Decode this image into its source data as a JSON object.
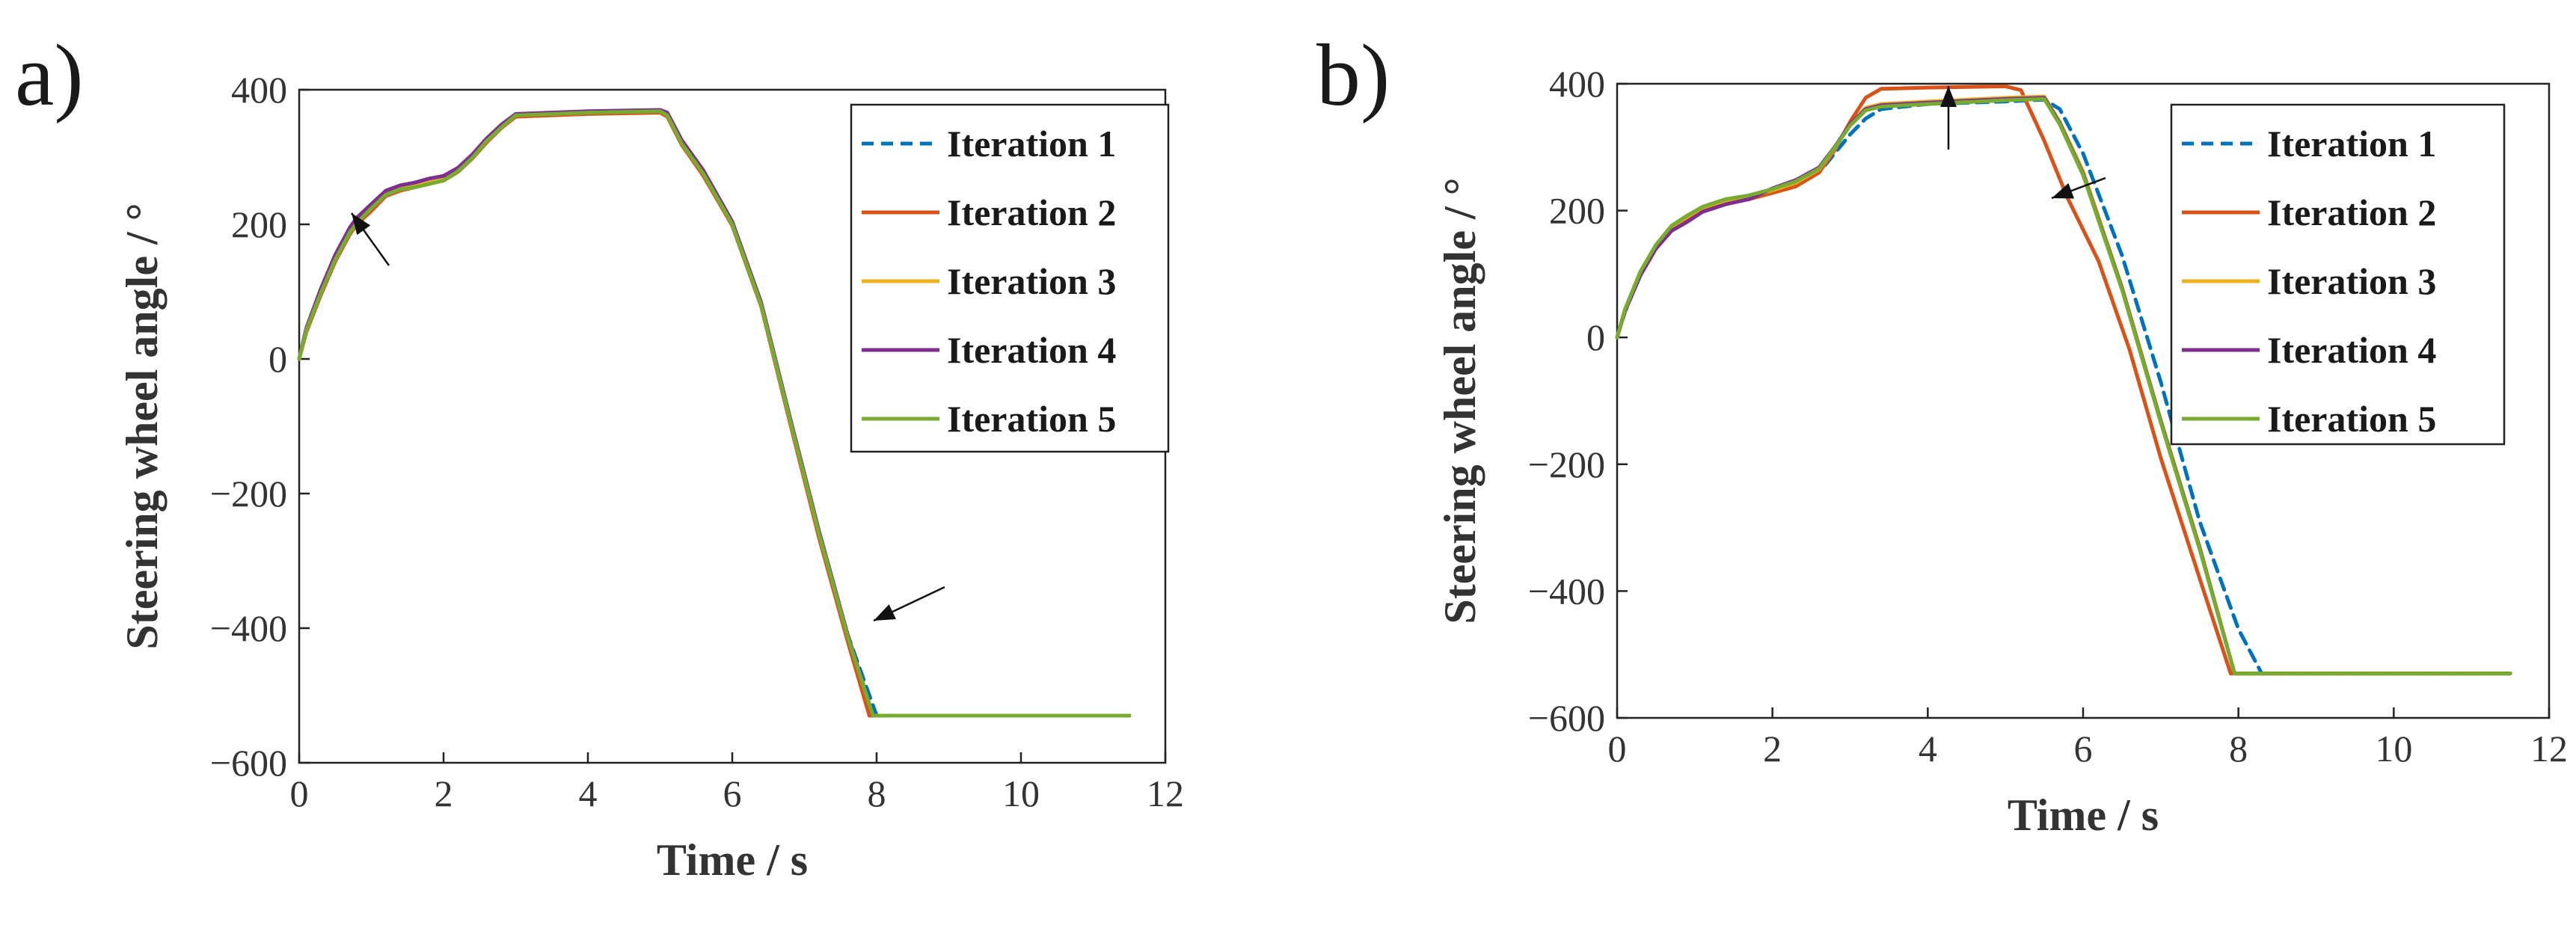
{
  "figure": {
    "panel_labels": [
      "a)",
      "b)"
    ]
  },
  "chart_data": [
    {
      "type": "line",
      "panel_label": "a)",
      "title": "",
      "xlabel": "Time / s",
      "ylabel": "Steering wheel angle / °",
      "xlim": [
        0,
        12
      ],
      "ylim": [
        -600,
        400
      ],
      "xticks": [
        "0",
        "2",
        "4",
        "6",
        "8",
        "10",
        "12"
      ],
      "yticks": [
        "400",
        "200",
        "0",
        "−200",
        "−400",
        "−600"
      ],
      "grid": false,
      "legend_position": "top-right",
      "annotations": [
        "arrow at t≈0.8 s, 210°",
        "arrow at t≈7.8 s, −390°"
      ],
      "series": [
        {
          "name": "Iteration 1",
          "color": "#0072BD",
          "dash": "dashed",
          "x": [
            0,
            0.1,
            0.3,
            0.5,
            0.7,
            0.8,
            1.0,
            1.2,
            1.4,
            1.6,
            1.8,
            2.0,
            2.2,
            2.4,
            2.6,
            2.8,
            3.0,
            4.0,
            5.0,
            5.1,
            5.3,
            5.6,
            6.0,
            6.4,
            6.8,
            7.2,
            7.6,
            8.0,
            9.0,
            10.0,
            11.5
          ],
          "y": [
            0,
            45,
            100,
            150,
            190,
            205,
            225,
            245,
            255,
            258,
            262,
            268,
            280,
            300,
            325,
            345,
            362,
            366,
            368,
            362,
            320,
            275,
            200,
            80,
            -90,
            -260,
            -410,
            -530,
            -530,
            -530,
            -530
          ]
        },
        {
          "name": "Iteration 2",
          "color": "#D95319",
          "dash": "solid",
          "x": [
            0,
            0.1,
            0.3,
            0.5,
            0.7,
            0.8,
            1.0,
            1.2,
            1.4,
            1.6,
            1.8,
            2.0,
            2.2,
            2.4,
            2.6,
            2.8,
            3.0,
            4.0,
            5.0,
            5.1,
            5.3,
            5.6,
            6.0,
            6.4,
            6.8,
            7.2,
            7.6,
            7.9,
            8.0,
            9.0,
            10.0,
            11.5
          ],
          "y": [
            0,
            40,
            95,
            145,
            185,
            200,
            220,
            242,
            250,
            255,
            260,
            265,
            278,
            298,
            322,
            343,
            360,
            364,
            366,
            360,
            318,
            272,
            198,
            78,
            -95,
            -265,
            -420,
            -530,
            -530,
            -530,
            -530,
            -530
          ]
        },
        {
          "name": "Iteration 3",
          "color": "#EDB120",
          "dash": "solid",
          "x": [
            0,
            0.1,
            0.3,
            0.5,
            0.7,
            0.8,
            1.0,
            1.2,
            1.4,
            1.6,
            1.8,
            2.0,
            2.2,
            2.4,
            2.6,
            2.8,
            3.0,
            4.0,
            5.0,
            5.1,
            5.3,
            5.6,
            6.0,
            6.4,
            6.8,
            7.2,
            7.6,
            7.95,
            9.0,
            10.0,
            11.5
          ],
          "y": [
            0,
            44,
            100,
            150,
            190,
            205,
            226,
            246,
            254,
            257,
            262,
            268,
            281,
            301,
            326,
            346,
            363,
            367,
            369,
            363,
            321,
            276,
            201,
            81,
            -90,
            -258,
            -412,
            -530,
            -530,
            -530,
            -530
          ]
        },
        {
          "name": "Iteration 4",
          "color": "#7E2F8E",
          "dash": "solid",
          "x": [
            0,
            0.1,
            0.3,
            0.5,
            0.7,
            0.8,
            1.0,
            1.2,
            1.4,
            1.6,
            1.8,
            2.0,
            2.2,
            2.4,
            2.6,
            2.8,
            3.0,
            4.0,
            5.0,
            5.1,
            5.3,
            5.6,
            6.0,
            6.4,
            6.8,
            7.2,
            7.6,
            7.95,
            9.0,
            10.0,
            11.5
          ],
          "y": [
            0,
            46,
            104,
            155,
            195,
            210,
            230,
            250,
            258,
            262,
            268,
            272,
            284,
            304,
            328,
            348,
            364,
            368,
            370,
            366,
            325,
            280,
            204,
            84,
            -87,
            -255,
            -410,
            -530,
            -530,
            -530,
            -530
          ]
        },
        {
          "name": "Iteration 5",
          "color": "#77AC30",
          "dash": "solid",
          "x": [
            0,
            0.1,
            0.3,
            0.5,
            0.7,
            0.8,
            1.0,
            1.2,
            1.4,
            1.6,
            1.8,
            2.0,
            2.2,
            2.4,
            2.6,
            2.8,
            3.0,
            4.0,
            5.0,
            5.1,
            5.3,
            5.6,
            6.0,
            6.4,
            6.8,
            7.2,
            7.6,
            7.95,
            9.0,
            10.0,
            11.5
          ],
          "y": [
            0,
            43,
            98,
            148,
            188,
            202,
            224,
            244,
            252,
            255,
            260,
            265,
            279,
            299,
            324,
            344,
            362,
            366,
            368,
            362,
            320,
            275,
            200,
            80,
            -91,
            -259,
            -413,
            -530,
            -530,
            -530,
            -530
          ]
        }
      ]
    },
    {
      "type": "line",
      "panel_label": "b)",
      "title": "",
      "xlabel": "Time / s",
      "ylabel": "Steering wheel angle / °",
      "xlim": [
        0,
        12
      ],
      "ylim": [
        -600,
        400
      ],
      "xticks": [
        "0",
        "2",
        "4",
        "6",
        "8",
        "10",
        "12"
      ],
      "yticks": [
        "400",
        "200",
        "0",
        "−200",
        "−400",
        "−600"
      ],
      "grid": false,
      "legend_position": "top-right",
      "annotations": [
        "arrow at t≈4.4 s, 395°",
        "arrow at t≈6.0 s, 230°"
      ],
      "series": [
        {
          "name": "Iteration 1",
          "color": "#0072BD",
          "dash": "dashed",
          "x": [
            0,
            0.1,
            0.3,
            0.5,
            0.7,
            0.9,
            1.1,
            1.4,
            1.7,
            2.0,
            2.3,
            2.6,
            2.8,
            3.0,
            3.2,
            3.4,
            4.0,
            5.0,
            5.5,
            5.7,
            6.0,
            6.5,
            7.0,
            7.5,
            8.0,
            8.3,
            9.0,
            10.0,
            11.5
          ],
          "y": [
            0,
            40,
            100,
            140,
            170,
            185,
            200,
            215,
            220,
            230,
            240,
            260,
            290,
            320,
            345,
            360,
            368,
            372,
            375,
            360,
            290,
            130,
            -70,
            -290,
            -460,
            -530,
            -530,
            -530,
            -530
          ]
        },
        {
          "name": "Iteration 2",
          "color": "#D95319",
          "dash": "solid",
          "x": [
            0,
            0.1,
            0.3,
            0.5,
            0.7,
            0.9,
            1.1,
            1.4,
            1.7,
            2.0,
            2.3,
            2.6,
            2.8,
            3.0,
            3.2,
            3.4,
            4.0,
            5.0,
            5.2,
            5.5,
            5.8,
            6.2,
            6.6,
            7.0,
            7.5,
            7.9,
            8.0,
            9.0,
            10.0,
            11.5
          ],
          "y": [
            0,
            42,
            102,
            142,
            172,
            188,
            202,
            212,
            218,
            228,
            238,
            260,
            295,
            340,
            378,
            392,
            394,
            396,
            390,
            310,
            220,
            120,
            -20,
            -190,
            -380,
            -530,
            -530,
            -530,
            -530,
            -530
          ]
        },
        {
          "name": "Iteration 3",
          "color": "#EDB120",
          "dash": "solid",
          "x": [
            0,
            0.1,
            0.3,
            0.5,
            0.7,
            0.9,
            1.1,
            1.4,
            1.7,
            2.0,
            2.3,
            2.6,
            2.8,
            3.0,
            3.2,
            3.4,
            4.0,
            5.0,
            5.5,
            5.7,
            6.0,
            6.5,
            7.0,
            7.5,
            7.95,
            9.0,
            10.0,
            11.5
          ],
          "y": [
            0,
            43,
            103,
            145,
            175,
            190,
            205,
            216,
            222,
            232,
            244,
            265,
            298,
            335,
            362,
            368,
            372,
            378,
            380,
            340,
            262,
            80,
            -130,
            -330,
            -530,
            -530,
            -530,
            -530
          ]
        },
        {
          "name": "Iteration 4",
          "color": "#7E2F8E",
          "dash": "solid",
          "x": [
            0,
            0.1,
            0.3,
            0.5,
            0.7,
            0.9,
            1.1,
            1.4,
            1.7,
            2.0,
            2.3,
            2.6,
            2.8,
            3.0,
            3.2,
            3.4,
            4.0,
            5.0,
            5.5,
            5.7,
            6.0,
            6.5,
            7.0,
            7.5,
            7.95,
            9.0,
            10.0,
            11.5
          ],
          "y": [
            0,
            41,
            98,
            140,
            168,
            182,
            198,
            210,
            218,
            235,
            248,
            268,
            300,
            336,
            360,
            366,
            370,
            376,
            378,
            338,
            258,
            78,
            -132,
            -332,
            -530,
            -530,
            -530,
            -530
          ]
        },
        {
          "name": "Iteration 5",
          "color": "#77AC30",
          "dash": "solid",
          "x": [
            0,
            0.1,
            0.3,
            0.5,
            0.7,
            0.9,
            1.1,
            1.4,
            1.7,
            2.0,
            2.3,
            2.6,
            2.8,
            3.0,
            3.2,
            3.4,
            4.0,
            5.0,
            5.5,
            5.7,
            6.0,
            6.5,
            7.0,
            7.5,
            7.95,
            9.0,
            10.0,
            11.5
          ],
          "y": [
            0,
            44,
            104,
            146,
            176,
            192,
            206,
            218,
            224,
            234,
            246,
            266,
            299,
            334,
            358,
            364,
            368,
            374,
            376,
            336,
            256,
            76,
            -134,
            -334,
            -530,
            -530,
            -530,
            -530
          ]
        }
      ]
    }
  ]
}
